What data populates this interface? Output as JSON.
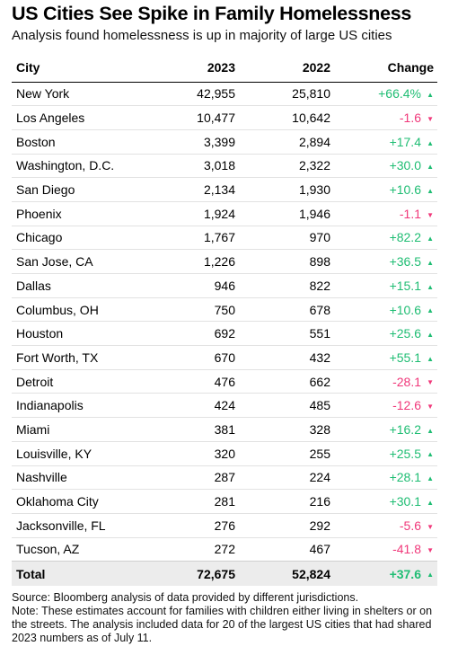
{
  "header": {
    "title": "US Cities See Spike in Family Homelessness",
    "subtitle": "Analysis found homelessness is up in majority of large US cities"
  },
  "table": {
    "columns": [
      "City",
      "2023",
      "2022",
      "Change"
    ],
    "rows": [
      {
        "city": "New York",
        "y2023": "42,955",
        "y2022": "25,810",
        "change": "+66.4%",
        "dir": "up"
      },
      {
        "city": "Los Angeles",
        "y2023": "10,477",
        "y2022": "10,642",
        "change": "-1.6",
        "dir": "down"
      },
      {
        "city": "Boston",
        "y2023": "3,399",
        "y2022": "2,894",
        "change": "+17.4",
        "dir": "up"
      },
      {
        "city": "Washington, D.C.",
        "y2023": "3,018",
        "y2022": "2,322",
        "change": "+30.0",
        "dir": "up"
      },
      {
        "city": "San Diego",
        "y2023": "2,134",
        "y2022": "1,930",
        "change": "+10.6",
        "dir": "up"
      },
      {
        "city": "Phoenix",
        "y2023": "1,924",
        "y2022": "1,946",
        "change": "-1.1",
        "dir": "down"
      },
      {
        "city": "Chicago",
        "y2023": "1,767",
        "y2022": "970",
        "change": "+82.2",
        "dir": "up"
      },
      {
        "city": "San Jose, CA",
        "y2023": "1,226",
        "y2022": "898",
        "change": "+36.5",
        "dir": "up"
      },
      {
        "city": "Dallas",
        "y2023": "946",
        "y2022": "822",
        "change": "+15.1",
        "dir": "up"
      },
      {
        "city": "Columbus, OH",
        "y2023": "750",
        "y2022": "678",
        "change": "+10.6",
        "dir": "up"
      },
      {
        "city": "Houston",
        "y2023": "692",
        "y2022": "551",
        "change": "+25.6",
        "dir": "up"
      },
      {
        "city": "Fort Worth, TX",
        "y2023": "670",
        "y2022": "432",
        "change": "+55.1",
        "dir": "up"
      },
      {
        "city": "Detroit",
        "y2023": "476",
        "y2022": "662",
        "change": "-28.1",
        "dir": "down"
      },
      {
        "city": "Indianapolis",
        "y2023": "424",
        "y2022": "485",
        "change": "-12.6",
        "dir": "down"
      },
      {
        "city": "Miami",
        "y2023": "381",
        "y2022": "328",
        "change": "+16.2",
        "dir": "up"
      },
      {
        "city": "Louisville, KY",
        "y2023": "320",
        "y2022": "255",
        "change": "+25.5",
        "dir": "up"
      },
      {
        "city": "Nashville",
        "y2023": "287",
        "y2022": "224",
        "change": "+28.1",
        "dir": "up"
      },
      {
        "city": "Oklahoma City",
        "y2023": "281",
        "y2022": "216",
        "change": "+30.1",
        "dir": "up"
      },
      {
        "city": "Jacksonville, FL",
        "y2023": "276",
        "y2022": "292",
        "change": "-5.6",
        "dir": "down"
      },
      {
        "city": "Tucson, AZ",
        "y2023": "272",
        "y2022": "467",
        "change": "-41.8",
        "dir": "down"
      }
    ],
    "total": {
      "city": "Total",
      "y2023": "72,675",
      "y2022": "52,824",
      "change": "+37.6",
      "dir": "up"
    }
  },
  "colors": {
    "up": "#1fbd73",
    "down": "#f0387a",
    "total_bg": "#ececec"
  },
  "icons": {
    "up": "triangle-up-icon",
    "down": "triangle-down-icon"
  },
  "footer": {
    "source": "Source: Bloomberg analysis of data provided by different jurisdictions.",
    "note": "Note: These estimates account for families with children either living in shelters or on the streets. The analysis included data for 20 of the largest US cities that had shared 2023 numbers as of July 11."
  },
  "chart_data": {
    "type": "table",
    "title": "US Cities See Spike in Family Homelessness",
    "subtitle": "Analysis found homelessness is up in majority of large US cities",
    "columns": [
      "City",
      "2023",
      "2022",
      "Change"
    ],
    "categories": [
      "New York",
      "Los Angeles",
      "Boston",
      "Washington, D.C.",
      "San Diego",
      "Phoenix",
      "Chicago",
      "San Jose, CA",
      "Dallas",
      "Columbus, OH",
      "Houston",
      "Fort Worth, TX",
      "Detroit",
      "Indianapolis",
      "Miami",
      "Louisville, KY",
      "Nashville",
      "Oklahoma City",
      "Jacksonville, FL",
      "Tucson, AZ"
    ],
    "series": [
      {
        "name": "2023",
        "values": [
          42955,
          10477,
          3399,
          3018,
          2134,
          1924,
          1767,
          1226,
          946,
          750,
          692,
          670,
          476,
          424,
          381,
          320,
          287,
          281,
          276,
          272
        ]
      },
      {
        "name": "2022",
        "values": [
          25810,
          10642,
          2894,
          2322,
          1930,
          1946,
          970,
          898,
          822,
          678,
          551,
          432,
          662,
          485,
          328,
          255,
          224,
          216,
          292,
          467
        ]
      },
      {
        "name": "Change",
        "values": [
          66.4,
          -1.6,
          17.4,
          30.0,
          10.6,
          -1.1,
          82.2,
          36.5,
          15.1,
          10.6,
          25.6,
          55.1,
          -28.1,
          -12.6,
          16.2,
          25.5,
          28.1,
          30.1,
          -5.6,
          -41.8
        ]
      }
    ],
    "total": {
      "2023": 72675,
      "2022": 52824,
      "Change": 37.6
    }
  }
}
